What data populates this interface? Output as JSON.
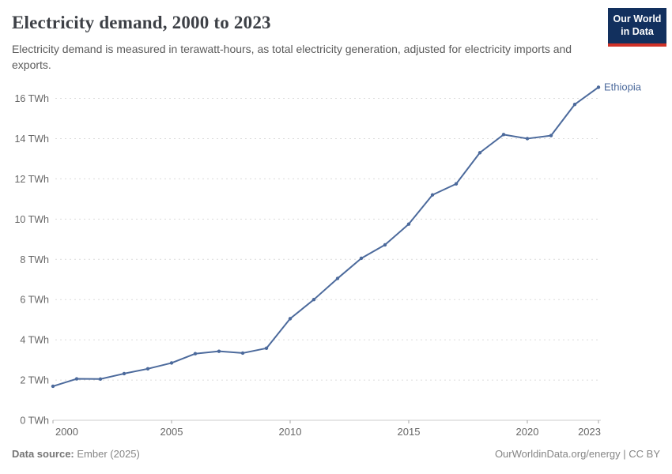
{
  "header": {
    "title": "Electricity demand, 2000 to 2023",
    "subtitle": "Electricity demand is measured in terawatt-hours, as total electricity generation, adjusted for electricity imports and exports.",
    "logo": {
      "line1": "Our World",
      "line2": "in Data"
    }
  },
  "footer": {
    "source_label": "Data source:",
    "source_value": "Ember (2025)",
    "credit": "OurWorldinData.org/energy | CC BY"
  },
  "colors": {
    "line": "#4c6a9c",
    "grid": "#dcdcdc",
    "axis": "#cccccc",
    "tick": "#a5a5a5",
    "axis_text": "#666666",
    "logo_bg": "#12305e",
    "logo_stripe": "#cf3127"
  },
  "chart_data": {
    "type": "line",
    "title": "Electricity demand, 2000 to 2023",
    "xlabel": "",
    "ylabel": "",
    "unit": "TWh",
    "ylim": [
      0,
      16.6
    ],
    "yticks": [
      0,
      2,
      4,
      6,
      8,
      10,
      12,
      14,
      16
    ],
    "ytick_suffix": " TWh",
    "xticks": [
      2000,
      2005,
      2010,
      2015,
      2020,
      2023
    ],
    "grid": "horizontal-dashed",
    "legend_position": "end-of-line-label",
    "x": [
      2000,
      2001,
      2002,
      2003,
      2004,
      2005,
      2006,
      2007,
      2008,
      2009,
      2010,
      2011,
      2012,
      2013,
      2014,
      2015,
      2016,
      2017,
      2018,
      2019,
      2020,
      2021,
      2022,
      2023
    ],
    "series": [
      {
        "name": "Ethiopia",
        "values": [
          1.69,
          2.06,
          2.05,
          2.32,
          2.56,
          2.85,
          3.31,
          3.43,
          3.34,
          3.58,
          5.05,
          6.0,
          7.05,
          8.05,
          8.72,
          9.75,
          11.2,
          11.75,
          13.3,
          14.2,
          14.0,
          14.15,
          15.7,
          16.55
        ]
      }
    ]
  }
}
